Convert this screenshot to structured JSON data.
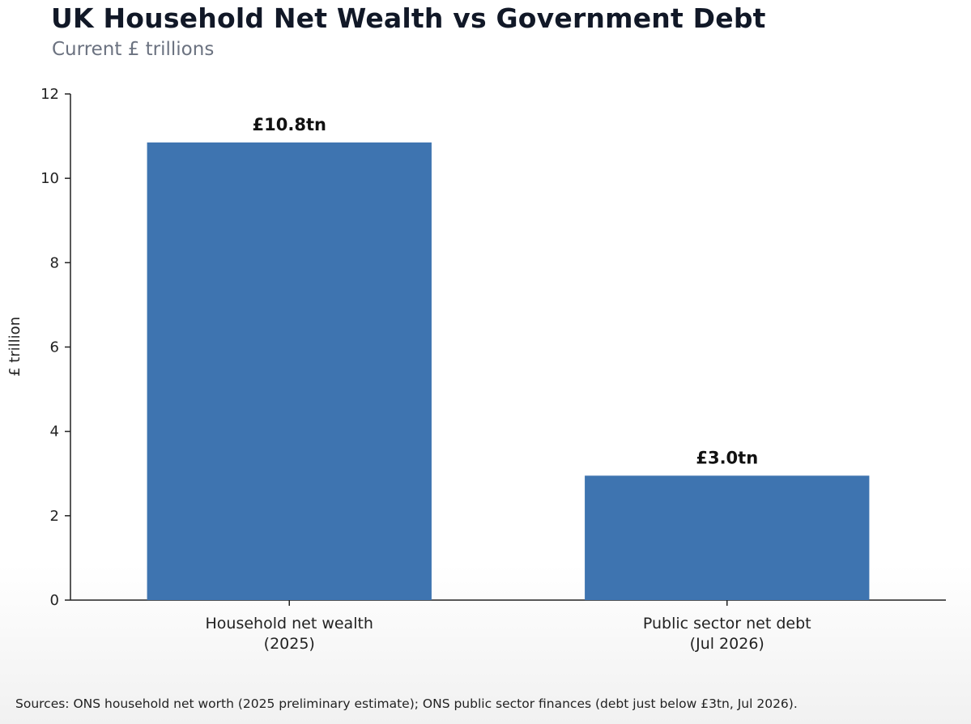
{
  "title": "UK Household Net Wealth vs Government Debt",
  "subtitle": "Current £ trillions",
  "source": "Sources: ONS household net worth (2025 preliminary estimate); ONS public sector finances (debt just below £3tn, Jul 2026).",
  "chart_data": {
    "type": "bar",
    "ylabel": "£ trillion",
    "xlabel": "",
    "ylim": [
      0,
      12
    ],
    "yticks": [
      0,
      2,
      4,
      6,
      8,
      10,
      12
    ],
    "grid": false,
    "bar_color": "#3e74b0",
    "categories": [
      [
        "Household net wealth",
        "(2025)"
      ],
      [
        "Public sector net debt",
        "(Jul 2026)"
      ]
    ],
    "values": [
      10.85,
      2.95
    ],
    "data_labels": [
      "£10.8tn",
      "£3.0tn"
    ]
  }
}
